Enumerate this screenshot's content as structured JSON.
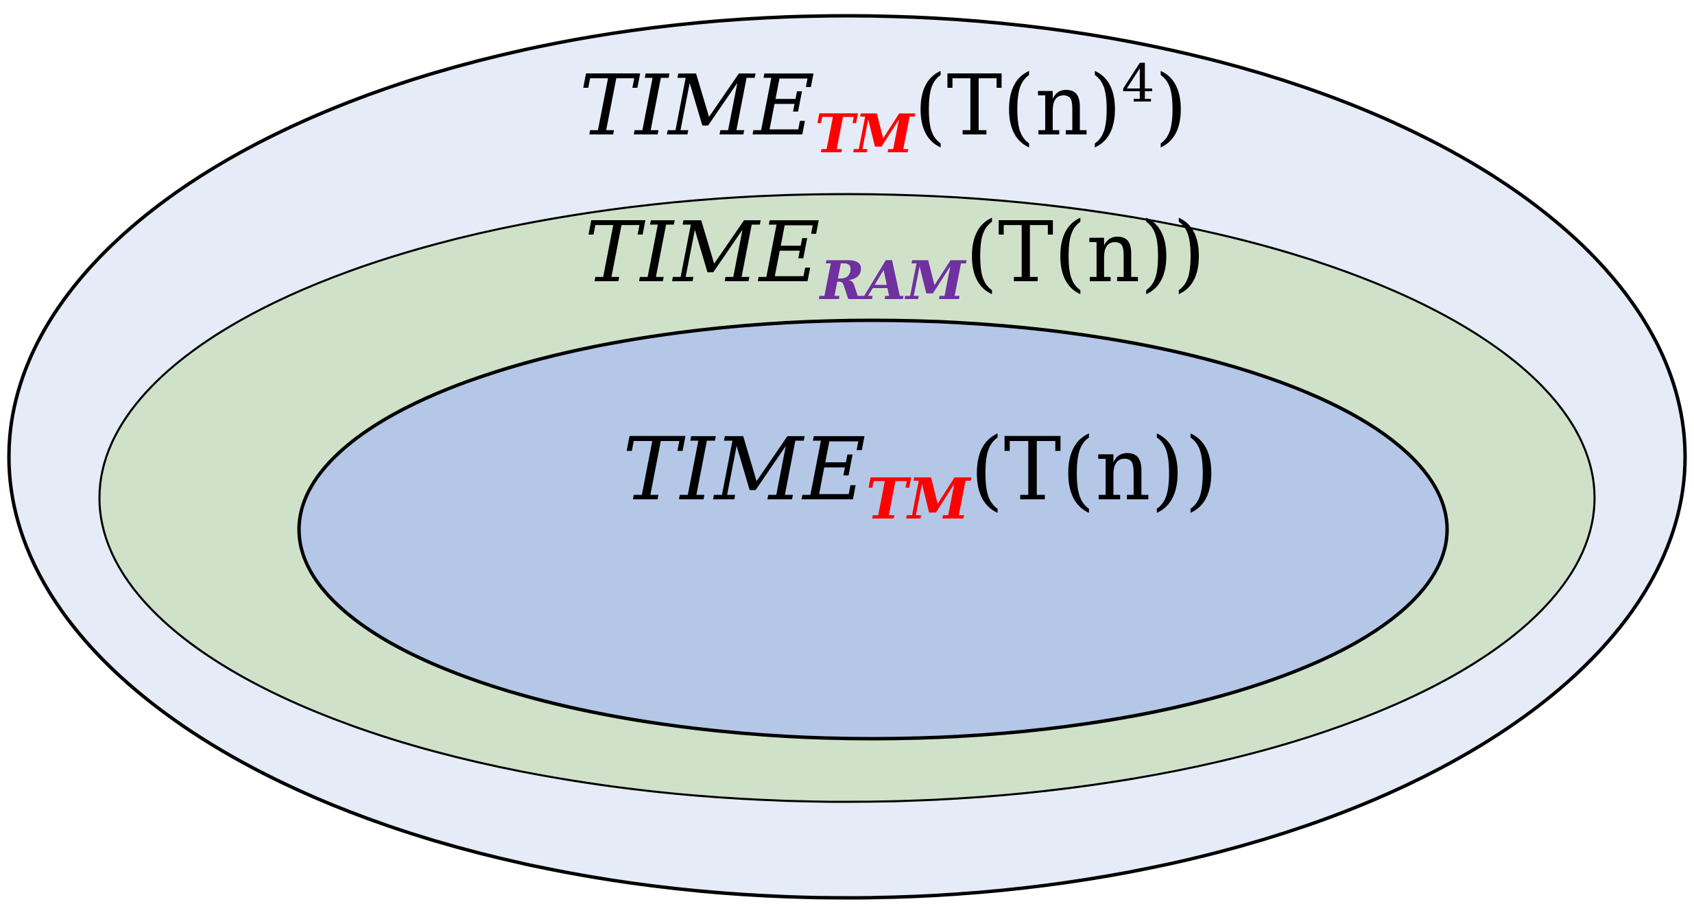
{
  "colors": {
    "outer_fill": "#e5ebf7",
    "middle_fill": "#cfe2c9",
    "inner_fill": "#b4c7e7",
    "outline": "#000000",
    "tm_subscript": "#ff0000",
    "ram_subscript": "#7030a0"
  },
  "sets": {
    "outer": {
      "base": "TIME",
      "subscript": "TM",
      "argument_open": "(T(n)",
      "exponent": "4",
      "argument_close": ")"
    },
    "middle": {
      "base": "TIME",
      "subscript": "RAM",
      "argument": "(T(n))"
    },
    "inner": {
      "base": "TIME",
      "subscript": "TM",
      "argument": "(T(n))"
    }
  }
}
